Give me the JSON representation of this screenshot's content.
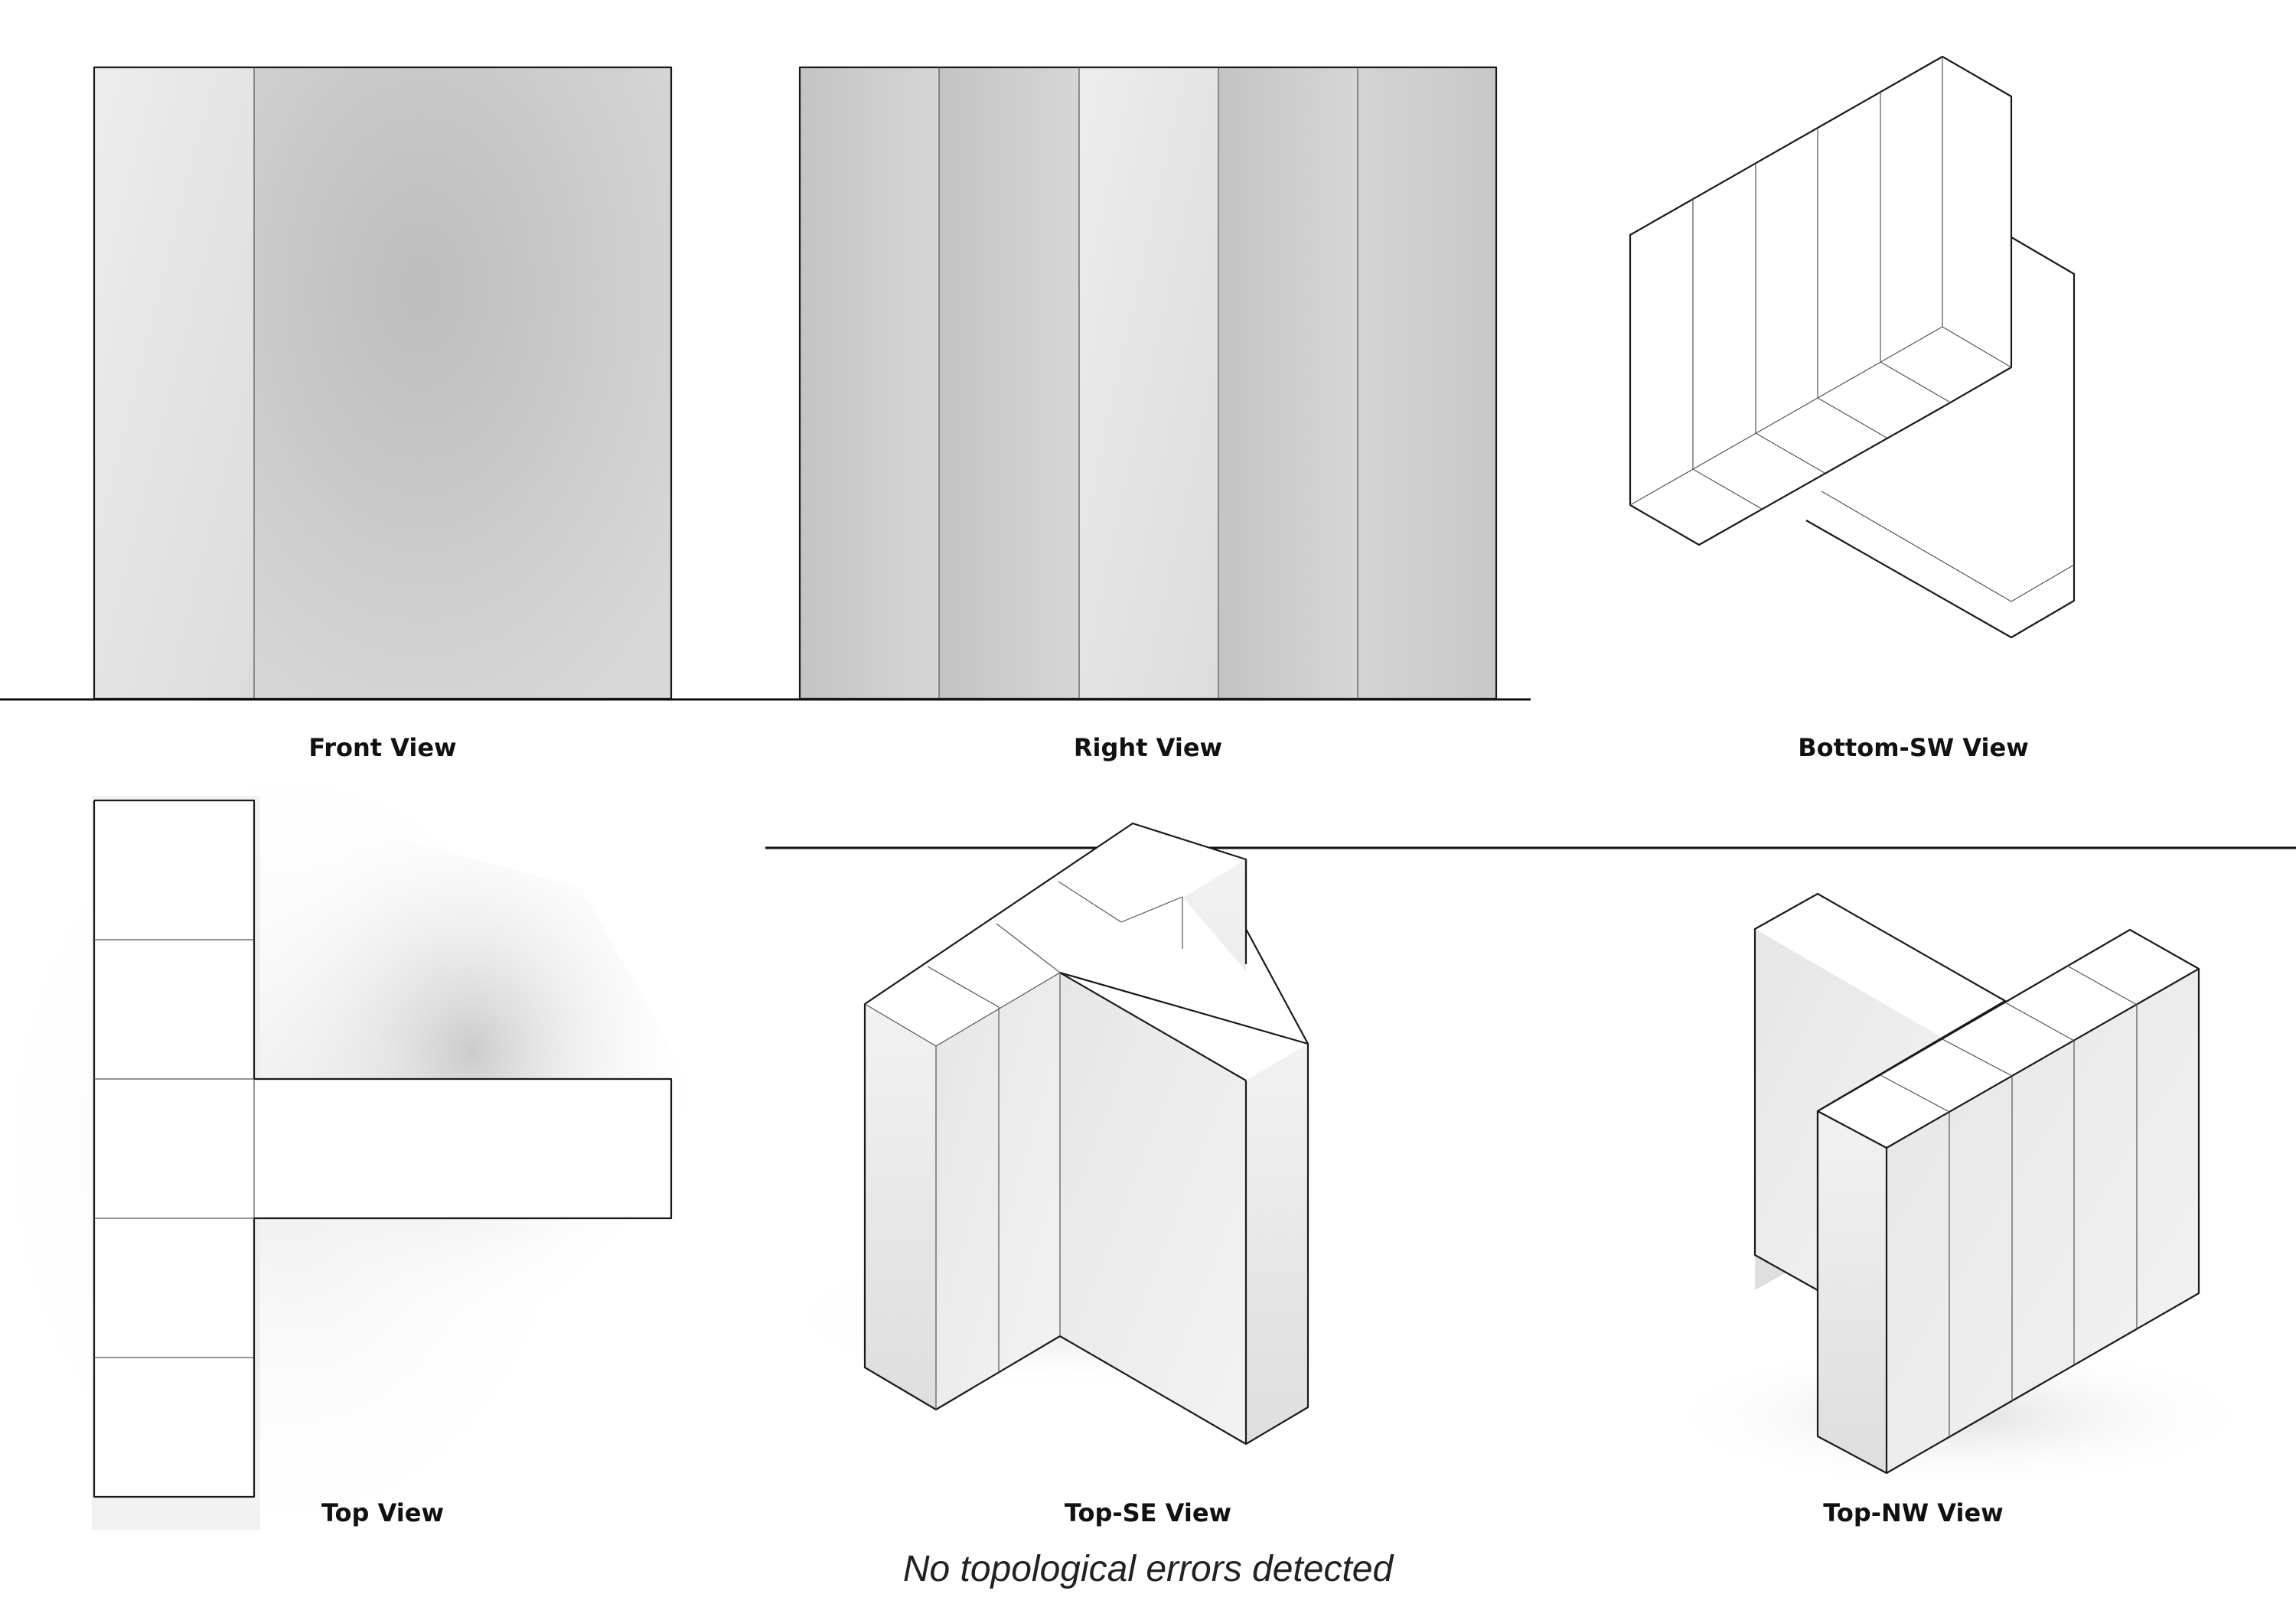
{
  "views": {
    "front": "Front View",
    "right": "Right View",
    "bottom_sw": "Bottom-SW View",
    "top": "Top View",
    "top_se": "Top-SE View",
    "top_nw": "Top-NW View"
  },
  "status": "No topological errors detected"
}
